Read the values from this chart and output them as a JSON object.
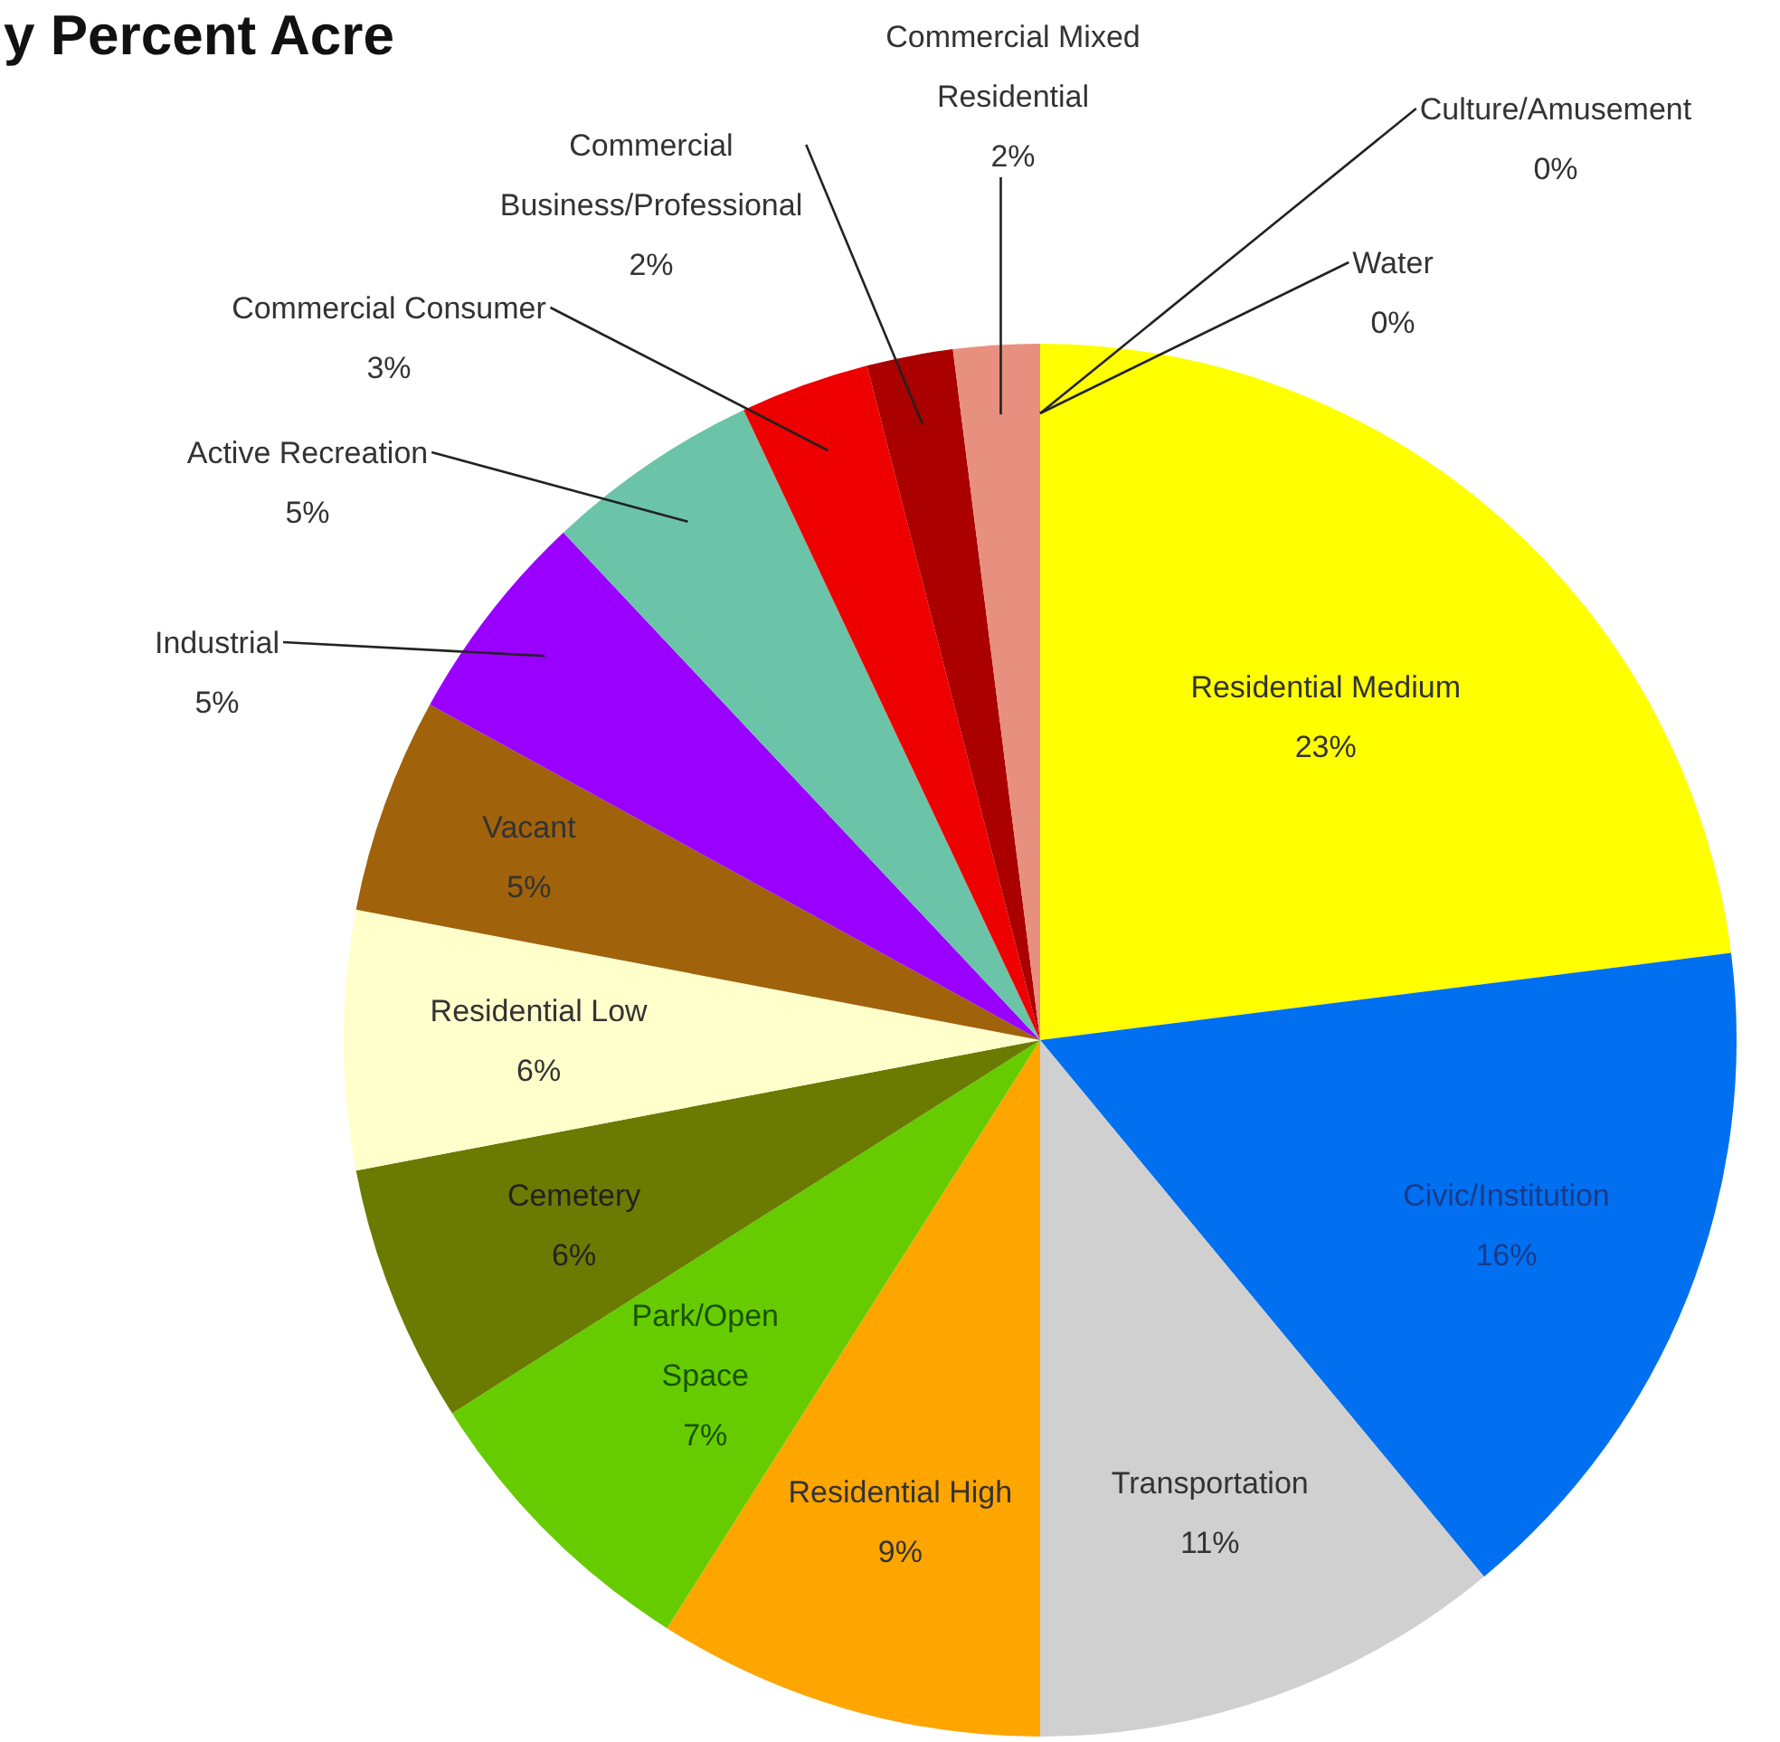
{
  "chart_data": {
    "type": "pie",
    "title": "y Percent Acre",
    "categories": [
      "Residential Medium",
      "Civic/Institution",
      "Transportation",
      "Residential High",
      "Park/Open Space",
      "Cemetery",
      "Residential Low",
      "Vacant",
      "Industrial",
      "Active Recreation",
      "Commercial Consumer",
      "Commercial Business/Professional",
      "Commercial Mixed Residential",
      "Culture/Amusement",
      "Water"
    ],
    "values": [
      23,
      16,
      11,
      9,
      7,
      6,
      6,
      5,
      5,
      5,
      3,
      2,
      2,
      0,
      0
    ],
    "colors": [
      "#ffff00",
      "#0070f0",
      "#d0d0d0",
      "#ffa500",
      "#66cc00",
      "#6b7a00",
      "#ffffcc",
      "#a0620a",
      "#9900ff",
      "#6cc4a8",
      "#ee0000",
      "#aa0000",
      "#e89080",
      "#9999ff",
      "#00e0e0"
    ],
    "value_labels": [
      "23%",
      "16%",
      "11%",
      "9%",
      "7%",
      "6%",
      "6%",
      "5%",
      "5%",
      "5%",
      "3%",
      "2%",
      "2%",
      "0%",
      "0%"
    ]
  }
}
